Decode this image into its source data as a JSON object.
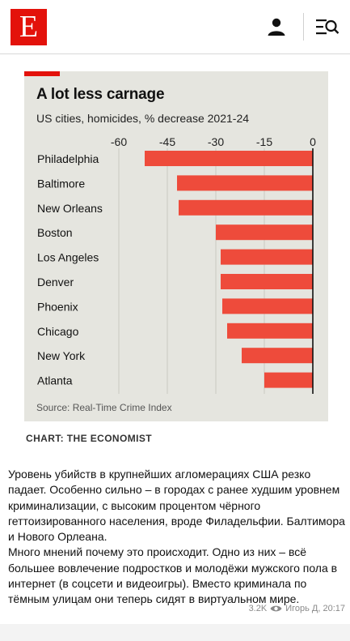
{
  "header": {
    "logo_letter": "E",
    "user_icon": "user-icon",
    "menu_icon": "menu-search-icon"
  },
  "chart": {
    "title": "A lot less carnage",
    "subtitle": "US cities, homicides, % decrease 2021-24",
    "source": "Source: Real-Time Crime Index",
    "credit": "CHART: THE ECONOMIST"
  },
  "chart_data": {
    "type": "bar",
    "orientation": "horizontal",
    "title": "A lot less carnage",
    "subtitle": "US cities, homicides, % decrease 2021-24",
    "categories": [
      "Philadelphia",
      "Baltimore",
      "New Orleans",
      "Boston",
      "Los Angeles",
      "Denver",
      "Phoenix",
      "Chicago",
      "New York",
      "Atlanta"
    ],
    "values": [
      -52,
      -42,
      -41.5,
      -30,
      -28.5,
      -28.5,
      -28,
      -26.5,
      -22,
      -15
    ],
    "xlim": [
      -60,
      0
    ],
    "xticks": [
      "-60",
      "-45",
      "-30",
      "-15",
      "0"
    ],
    "xtick_values": [
      -60,
      -45,
      -30,
      -15,
      0
    ],
    "bar_color": "#ee4b3b",
    "grid": true,
    "source": "Source: Real-Time Crime Index"
  },
  "post": {
    "paragraph1": "Уровень убийств в крупнейших агломерациях США резко падает. Особенно сильно – в городах с ранее худшим уровнем криминализации, с высоким процентом чёрного геттоизированного населения, вроде Филадельфии. Балтимора и Нового Орлеана.",
    "paragraph2": "Много мнений почему это происходит. Одно из них – всё большее вовлечение подростков и молодёжи мужского пола в интернет (в соцсети и видеоигры). Вместо криминала по тёмным улицам они теперь сидят в виртуальном мире.",
    "views": "3.2K",
    "author_time": "Игорь Д, 20:17"
  }
}
